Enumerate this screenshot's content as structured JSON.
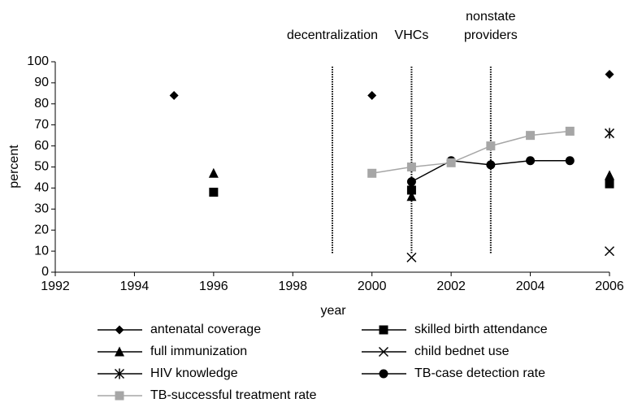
{
  "chart_data": {
    "type": "line",
    "xlabel": "year",
    "ylabel": "percent",
    "x": [
      1995,
      1996,
      2000,
      2001,
      2002,
      2003,
      2004,
      2005,
      2006
    ],
    "xlim": [
      1992,
      2006
    ],
    "xticks": [
      1992,
      1994,
      1996,
      1998,
      2000,
      2002,
      2004,
      2006
    ],
    "ylim": [
      0,
      100
    ],
    "yticks": [
      0,
      10,
      20,
      30,
      40,
      50,
      60,
      70,
      80,
      90,
      100
    ],
    "series": [
      {
        "name": "antenatal coverage",
        "color": "#000000",
        "marker": "diamond",
        "values": [
          84,
          null,
          84,
          null,
          null,
          null,
          null,
          null,
          94
        ]
      },
      {
        "name": "skilled birth attendance",
        "color": "#000000",
        "marker": "square",
        "values": [
          null,
          38,
          null,
          39,
          null,
          null,
          null,
          null,
          42
        ]
      },
      {
        "name": "full immunization",
        "color": "#000000",
        "marker": "triangle",
        "values": [
          null,
          47,
          null,
          36,
          null,
          null,
          null,
          null,
          46
        ]
      },
      {
        "name": "child bednet use",
        "color": "#000000",
        "marker": "x",
        "values": [
          null,
          null,
          null,
          7,
          null,
          null,
          null,
          null,
          10
        ]
      },
      {
        "name": "HIV knowledge",
        "color": "#000000",
        "marker": "asterisk",
        "values": [
          null,
          null,
          null,
          null,
          null,
          null,
          null,
          null,
          66
        ]
      },
      {
        "name": "TB-case detection rate",
        "color": "#000000",
        "marker": "circle",
        "values": [
          null,
          null,
          null,
          43,
          53,
          51,
          53,
          53,
          null
        ]
      },
      {
        "name": "TB-successful treatment rate",
        "color": "#a6a6a6",
        "marker": "square",
        "values": [
          null,
          null,
          47,
          50,
          52,
          60,
          65,
          67,
          null
        ]
      }
    ],
    "events": [
      {
        "label": [
          "decentralization"
        ],
        "x": 1999
      },
      {
        "label": [
          "VHCs"
        ],
        "x": 2001
      },
      {
        "label": [
          "nonstate",
          "providers"
        ],
        "x": 2003
      }
    ]
  }
}
